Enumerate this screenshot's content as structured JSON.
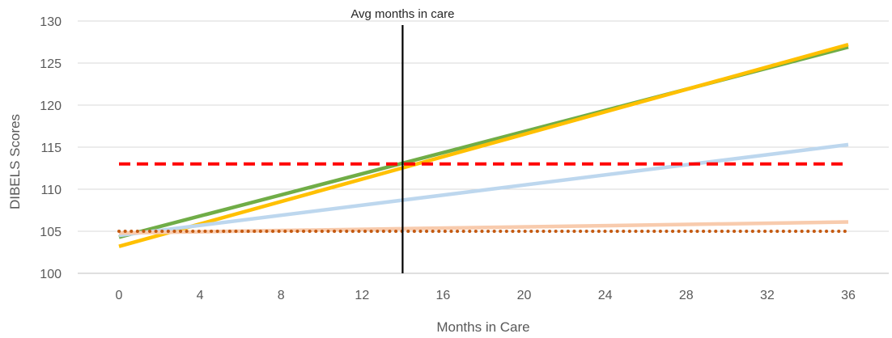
{
  "chart_data": {
    "type": "line",
    "title": "",
    "xlabel": "Months in Care",
    "ylabel": "DIBELS Scores",
    "x_ticks": [
      0,
      4,
      8,
      12,
      16,
      20,
      24,
      28,
      32,
      36
    ],
    "y_ticks": [
      100,
      105,
      110,
      115,
      120,
      125,
      130
    ],
    "xlim": [
      0,
      36
    ],
    "ylim": [
      100,
      130
    ],
    "grid": "horizontal",
    "legend": "none",
    "series": [
      {
        "color": "#70AD47",
        "style": "solid",
        "x": [
          0,
          36
        ],
        "y": [
          104.3,
          126.9
        ]
      },
      {
        "color": "#FFC000",
        "style": "solid",
        "x": [
          0,
          36
        ],
        "y": [
          103.2,
          127.2
        ]
      },
      {
        "color": "#BDD7EE",
        "style": "solid",
        "x": [
          0,
          36
        ],
        "y": [
          104.5,
          115.3
        ]
      },
      {
        "color": "#F8CBAD",
        "style": "solid",
        "x": [
          0,
          36
        ],
        "y": [
          104.8,
          106.1
        ]
      },
      {
        "color": "#FF0000",
        "style": "dashed",
        "x": [
          0,
          36
        ],
        "y": [
          113,
          113
        ]
      },
      {
        "color": "#C55A11",
        "style": "dotted",
        "x": [
          0,
          36
        ],
        "y": [
          105,
          105
        ]
      }
    ],
    "annotations": [
      {
        "text": "Avg months in care",
        "x": 14,
        "color": "#000000"
      }
    ]
  }
}
